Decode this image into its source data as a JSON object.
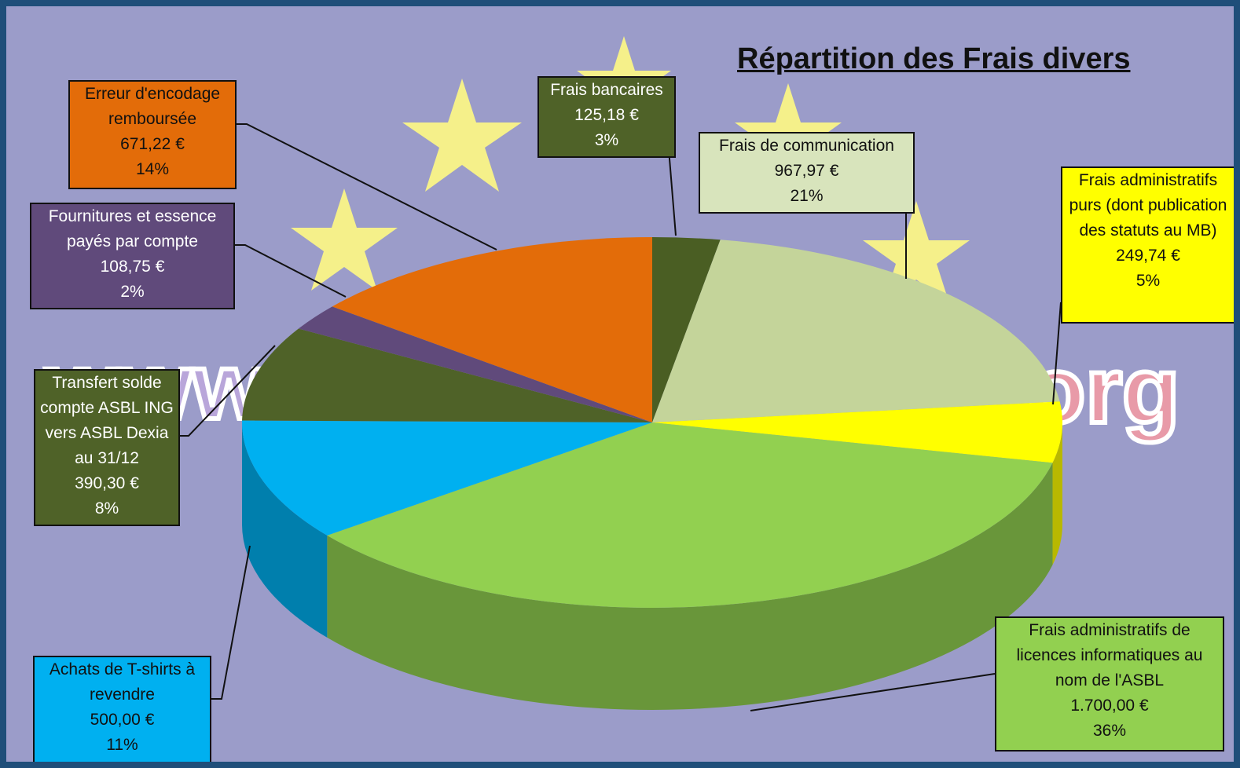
{
  "chart_data": {
    "type": "pie3d",
    "title": "Répartition des Frais divers",
    "categories": [
      "Frais bancaires",
      "Frais de communication",
      "Frais administratifs purs (dont publication des statuts au MB)",
      "Frais administratifs de licences informatiques au nom de l'ASBL",
      "Achats de T-shirts à revendre",
      "Transfert solde compte ASBL ING vers ASBL Dexia au 31/12",
      "Fournitures et essence payés par compte",
      "Erreur d'encodage remboursée"
    ],
    "values": [
      125.18,
      967.97,
      249.74,
      1700.0,
      500.0,
      390.3,
      108.75,
      671.22
    ],
    "value_labels": [
      "125,18 €",
      "967,97 €",
      "249,74 €",
      "1.700,00 €",
      "500,00 €",
      "390,30 €",
      "108,75 €",
      "671,22 €"
    ],
    "percent_labels": [
      "3%",
      "21%",
      "5%",
      "36%",
      "11%",
      "8%",
      "2%",
      "14%"
    ],
    "colors": [
      "#4a5e23",
      "#c4d49a",
      "#ffff00",
      "#92d050",
      "#00b0f0",
      "#4f6228",
      "#604a7b",
      "#e36c09"
    ],
    "label_colors": [
      "#4f6228",
      "#d8e4bc",
      "#ffff00",
      "#92d050",
      "#00b0f0",
      "#4f6228",
      "#604a7b",
      "#e36c09"
    ]
  }
}
